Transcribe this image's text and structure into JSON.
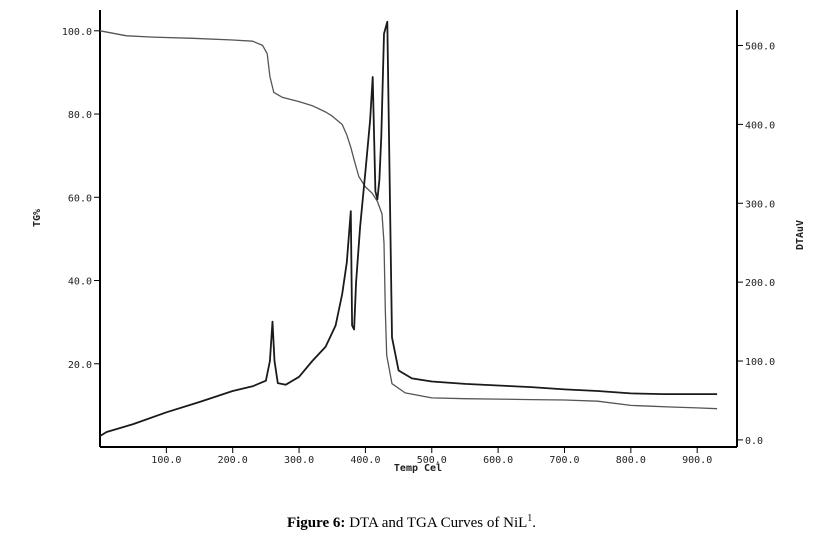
{
  "chart_data": {
    "type": "line",
    "xlabel": "Temp Cel",
    "ylabel": "TG%",
    "y2label": "DTAuV",
    "xlim": [
      0,
      960
    ],
    "ylim": [
      0,
      105
    ],
    "y2lim": [
      -9,
      545
    ],
    "x_ticks": [
      "100.0",
      "200.0",
      "300.0",
      "400.0",
      "500.0",
      "600.0",
      "700.0",
      "800.0",
      "900.0"
    ],
    "y_ticks": [
      "20.0",
      "40.0",
      "60.0",
      "80.0",
      "100.0"
    ],
    "y2_ticks": [
      "0.0",
      "100.0",
      "200.0",
      "300.0",
      "400.0",
      "500.0"
    ],
    "grid": false,
    "legend": "none",
    "series": [
      {
        "axis": "left",
        "color": "#555555",
        "x": [
          0,
          40,
          80,
          140,
          200,
          230,
          245,
          252,
          256,
          262,
          275,
          300,
          320,
          340,
          350,
          365,
          372,
          378,
          383,
          390,
          400,
          410,
          418,
          425,
          428,
          430,
          432,
          440,
          460,
          500,
          550,
          600,
          650,
          700,
          750,
          800,
          830,
          860,
          900,
          930
        ],
        "y": [
          100,
          98.8,
          98.5,
          98.2,
          97.8,
          97.5,
          96.5,
          94.5,
          89,
          85.2,
          84,
          83,
          82,
          80.5,
          79.5,
          77.5,
          75,
          72,
          69,
          65,
          62.5,
          61,
          59,
          56,
          49,
          33,
          22,
          15.2,
          13,
          11.8,
          11.6,
          11.5,
          11.4,
          11.3,
          11,
          10,
          9.8,
          9.6,
          9.4,
          9.2
        ]
      },
      {
        "axis": "right",
        "color": "#1a1a1a",
        "x": [
          0,
          10,
          50,
          100,
          150,
          200,
          230,
          250,
          256,
          260,
          263,
          268,
          280,
          300,
          320,
          340,
          355,
          365,
          372,
          378,
          380,
          383,
          386,
          392,
          400,
          407,
          411,
          415,
          418,
          421,
          424,
          428,
          433,
          440,
          450,
          470,
          500,
          550,
          600,
          650,
          700,
          750,
          800,
          850,
          900,
          930
        ],
        "y": [
          5,
          10,
          20,
          35,
          48,
          62,
          68,
          75,
          100,
          150,
          100,
          72,
          70,
          80,
          100,
          118,
          145,
          185,
          225,
          290,
          145,
          140,
          200,
          270,
          340,
          405,
          460,
          315,
          305,
          330,
          385,
          515,
          530,
          130,
          88,
          78,
          74,
          71,
          69,
          67,
          64,
          62,
          59,
          58,
          58,
          58
        ]
      }
    ]
  },
  "caption": {
    "label": "Figure 6:",
    "text": " DTA and TGA Curves of NiL",
    "sup": "1",
    "end": "."
  }
}
